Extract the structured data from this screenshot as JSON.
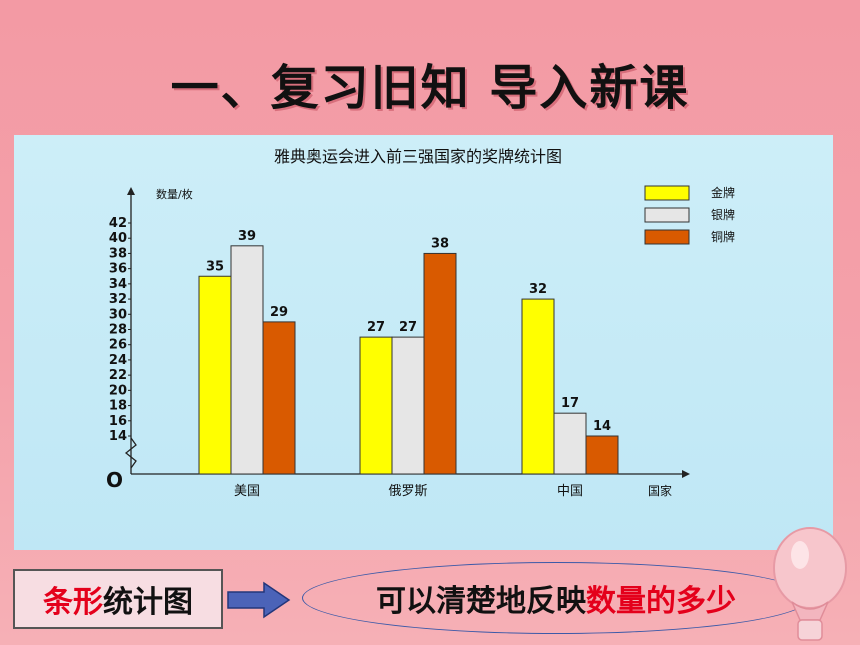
{
  "slide": {
    "title": "一、复习旧知    导入新课"
  },
  "chart_data": {
    "type": "bar",
    "title": "雅典奥运会进入前三强国家的奖牌统计图",
    "ylabel": "数量/枚",
    "xlabel": "国家",
    "origin_label": "O",
    "categories": [
      "美国",
      "俄罗斯",
      "中国"
    ],
    "series": [
      {
        "name": "金牌",
        "color": "#ffff00",
        "values": [
          35,
          27,
          32
        ]
      },
      {
        "name": "银牌",
        "color": "#e6e6e6",
        "values": [
          39,
          27,
          17
        ]
      },
      {
        "name": "铜牌",
        "color": "#d95a00",
        "values": [
          29,
          38,
          14
        ]
      }
    ],
    "yticks": [
      14,
      16,
      18,
      20,
      22,
      24,
      26,
      28,
      30,
      32,
      34,
      36,
      38,
      40,
      42
    ],
    "ylim": [
      0,
      42
    ],
    "axis_break": true,
    "legend_position": "top-right",
    "grid": false
  },
  "bottom": {
    "left_red": "条形",
    "left_black": "统计图",
    "right_black": "可以清楚地反映",
    "right_red": "数量的多少"
  }
}
